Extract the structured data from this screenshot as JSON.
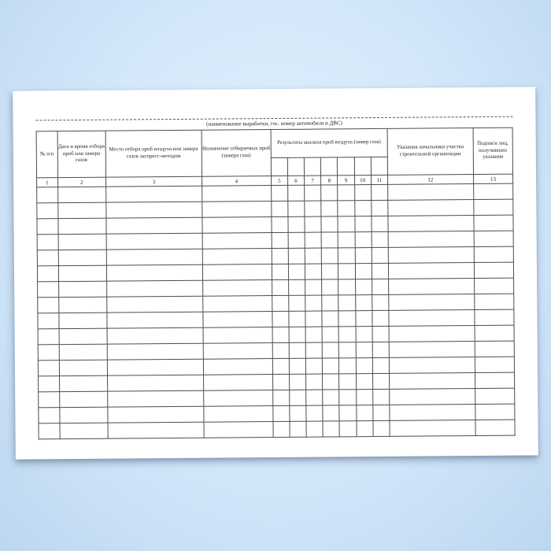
{
  "background": {
    "color_center": "#e3f1fd",
    "color_edge": "#bdd7f0"
  },
  "paper": {
    "color": "#ffffff",
    "rotation_deg": -0.45
  },
  "caption": "(наименование выработки, гос. номер автомобиля и ДВС)",
  "table": {
    "header_col1": "№ п/п",
    "header_col2": "Дата и время отбора проб или замера газов",
    "header_col3": "Место отбора проб воздуха или замера газов экспресс-методом",
    "header_col4": "Назначение отбираемых проб (замера газа)",
    "group_header": "Результаты анализа проб воздуха (замер газа)",
    "header_col12": "Указания начальника участка строительной организации",
    "header_col13": "Подписи лиц, получивших указания",
    "column_numbers": [
      "1",
      "2",
      "3",
      "4",
      "5",
      "6",
      "7",
      "8",
      "9",
      "10",
      "11",
      "12",
      "13"
    ],
    "sub_column_count": 7,
    "column_count": 13,
    "body_rows": 16,
    "border_color": "#4d4d4d"
  }
}
